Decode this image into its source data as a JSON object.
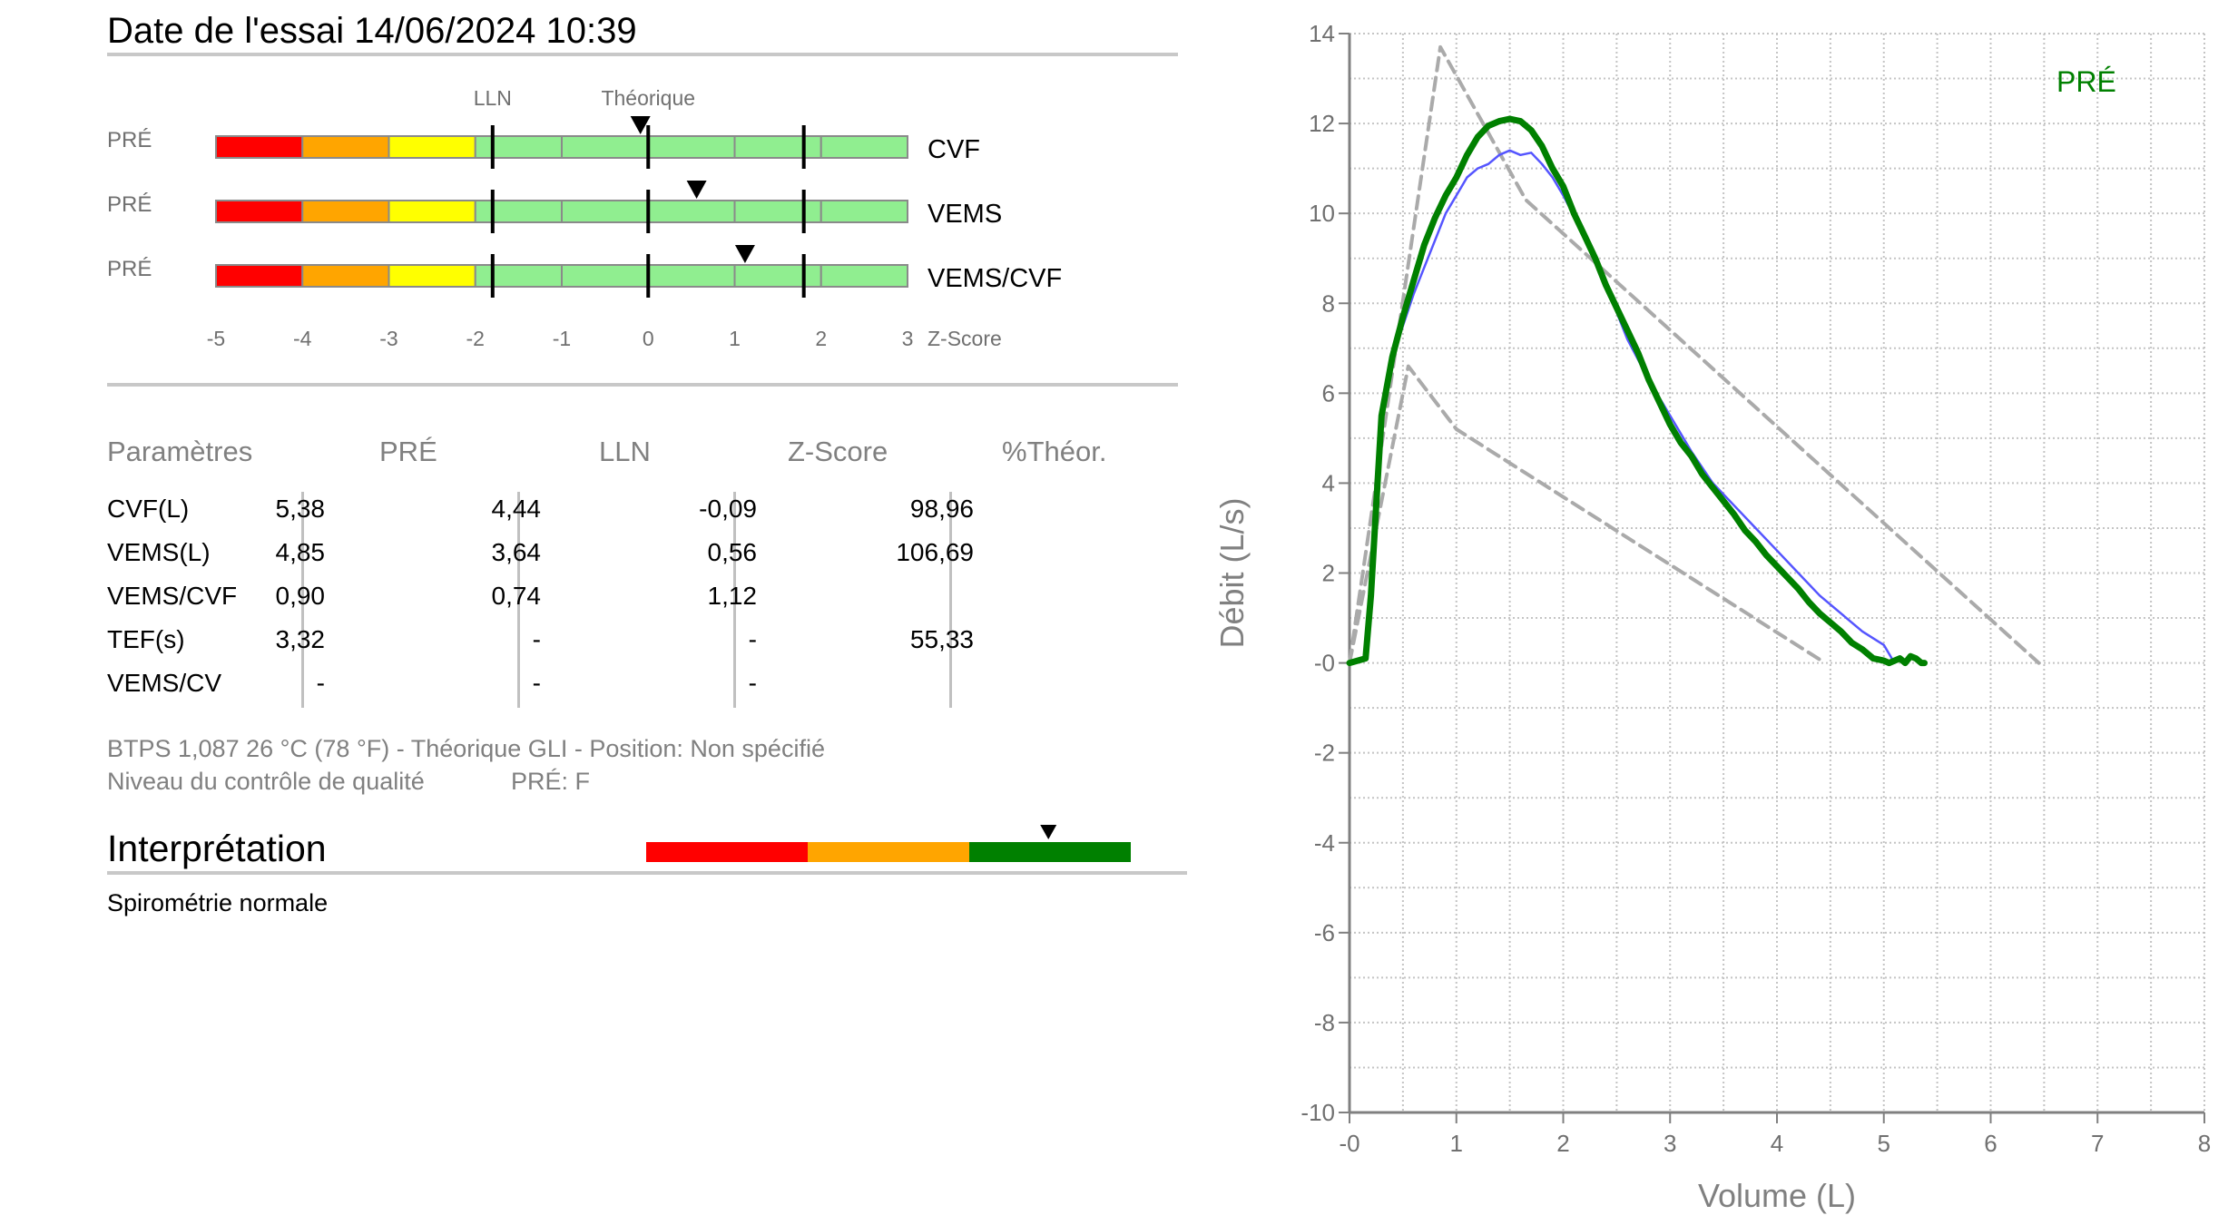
{
  "report": {
    "title": "Date de l'essai 14/06/2024 10:39"
  },
  "zscore_panel": {
    "lln_label": "LLN",
    "theo_label": "Théorique",
    "axis_label": "Z-Score",
    "ticks": [
      "-5",
      "-4",
      "-3",
      "-2",
      "-1",
      "0",
      "1",
      "2",
      "3"
    ],
    "zone_colors": [
      "#ff0000",
      "#ffa500",
      "#ffff00",
      "#90ee90",
      "#90ee90",
      "#90ee90",
      "#90ee90",
      "#90ee90"
    ],
    "lln_marker_z": -1.8,
    "upper_marker_z": 1.8,
    "rows": [
      {
        "prefix": "PRÉ",
        "name": "CVF",
        "z": -0.09
      },
      {
        "prefix": "PRÉ",
        "name": "VEMS",
        "z": 0.56
      },
      {
        "prefix": "PRÉ",
        "name": "VEMS/CVF",
        "z": 1.12
      }
    ]
  },
  "params_table": {
    "headers": [
      "Paramètres",
      "PRÉ",
      "LLN",
      "Z-Score",
      "%Théor."
    ],
    "rows": [
      [
        "CVF(L)",
        "5,38",
        "4,44",
        "-0,09",
        "98,96"
      ],
      [
        "VEMS(L)",
        "4,85",
        "3,64",
        "0,56",
        "106,69"
      ],
      [
        "VEMS/CVF",
        "0,90",
        "0,74",
        "1,12",
        ""
      ],
      [
        "TEF(s)",
        "3,32",
        "-",
        "-",
        "55,33"
      ],
      [
        "VEMS/CV",
        "-",
        "-",
        "-",
        ""
      ]
    ]
  },
  "footnotes": {
    "line1": "BTPS 1,087 26 °C (78 °F) - Théorique GLI - Position: Non spécifié",
    "line2_label": "Niveau du contrôle de qualité",
    "line2_value": "PRÉ: F"
  },
  "interpretation": {
    "title": "Interprétation",
    "text": "Spirométrie normale",
    "bar_colors": [
      "#ff0000",
      "#ffa500",
      "#008000"
    ],
    "marker_level": 0.83
  },
  "chart_data": {
    "type": "line",
    "xlabel": "Volume (L)",
    "ylabel": "Débit (L/s)",
    "xlim": [
      0,
      8
    ],
    "ylim": [
      -10,
      14
    ],
    "x_ticks": [
      "-0",
      "1",
      "2",
      "3",
      "4",
      "5",
      "6",
      "7",
      "8"
    ],
    "y_ticks": [
      "14",
      "12",
      "10",
      "8",
      "6",
      "4",
      "2",
      "-0",
      "-2",
      "-4",
      "-6",
      "-8",
      "-10"
    ],
    "legend": "PRÉ",
    "legend_color": "#008000",
    "grid": true,
    "series": [
      {
        "name": "PRÉ",
        "color": "#008000",
        "x": [
          0,
          0.15,
          0.2,
          0.25,
          0.3,
          0.4,
          0.5,
          0.6,
          0.7,
          0.8,
          0.9,
          1.0,
          1.1,
          1.2,
          1.3,
          1.4,
          1.5,
          1.6,
          1.7,
          1.8,
          1.9,
          2.0,
          2.1,
          2.2,
          2.3,
          2.4,
          2.5,
          2.6,
          2.7,
          2.8,
          2.9,
          3.0,
          3.1,
          3.2,
          3.3,
          3.4,
          3.5,
          3.6,
          3.7,
          3.8,
          3.9,
          4.0,
          4.1,
          4.2,
          4.3,
          4.4,
          4.5,
          4.6,
          4.7,
          4.8,
          4.9,
          5.0,
          5.05,
          5.1,
          5.15,
          5.2,
          5.25,
          5.3,
          5.35,
          5.38
        ],
        "y": [
          0,
          0.1,
          1.5,
          3.5,
          5.5,
          6.8,
          7.7,
          8.5,
          9.3,
          9.9,
          10.4,
          10.8,
          11.3,
          11.7,
          11.95,
          12.05,
          12.1,
          12.05,
          11.85,
          11.5,
          11.0,
          10.6,
          10.0,
          9.5,
          9.0,
          8.4,
          7.9,
          7.4,
          6.9,
          6.3,
          5.8,
          5.3,
          4.9,
          4.6,
          4.2,
          3.9,
          3.6,
          3.3,
          2.95,
          2.7,
          2.4,
          2.15,
          1.9,
          1.65,
          1.35,
          1.1,
          0.9,
          0.7,
          0.45,
          0.3,
          0.1,
          0.05,
          0.0,
          0.05,
          0.1,
          0.0,
          0.15,
          0.1,
          0.0,
          0.0
        ]
      },
      {
        "name": "",
        "color": "#5555ff",
        "x": [
          0,
          0.15,
          0.2,
          0.3,
          0.4,
          0.5,
          0.6,
          0.7,
          0.8,
          0.9,
          1.0,
          1.1,
          1.2,
          1.3,
          1.4,
          1.5,
          1.6,
          1.7,
          1.8,
          1.9,
          2.0,
          2.2,
          2.4,
          2.6,
          2.8,
          3.0,
          3.2,
          3.4,
          3.6,
          3.8,
          4.0,
          4.2,
          4.4,
          4.6,
          4.8,
          5.0,
          5.1
        ],
        "y": [
          0,
          0.1,
          1.5,
          5.5,
          6.8,
          7.5,
          8.2,
          8.8,
          9.4,
          10.0,
          10.4,
          10.8,
          11.0,
          11.1,
          11.3,
          11.4,
          11.3,
          11.35,
          11.1,
          10.8,
          10.4,
          9.5,
          8.4,
          7.2,
          6.3,
          5.5,
          4.7,
          4.0,
          3.5,
          3.0,
          2.5,
          2.0,
          1.5,
          1.1,
          0.7,
          0.4,
          0.0
        ]
      },
      {
        "name": "",
        "color": "#aaaaaa",
        "dashed": true,
        "x": [
          0,
          0.85,
          1.65,
          6.45
        ],
        "y": [
          0,
          13.7,
          10.3,
          0
        ]
      },
      {
        "name": "",
        "color": "#aaaaaa",
        "dashed": true,
        "x": [
          0,
          0.55,
          1.0,
          4.45
        ],
        "y": [
          0,
          6.6,
          5.2,
          0
        ]
      }
    ]
  }
}
